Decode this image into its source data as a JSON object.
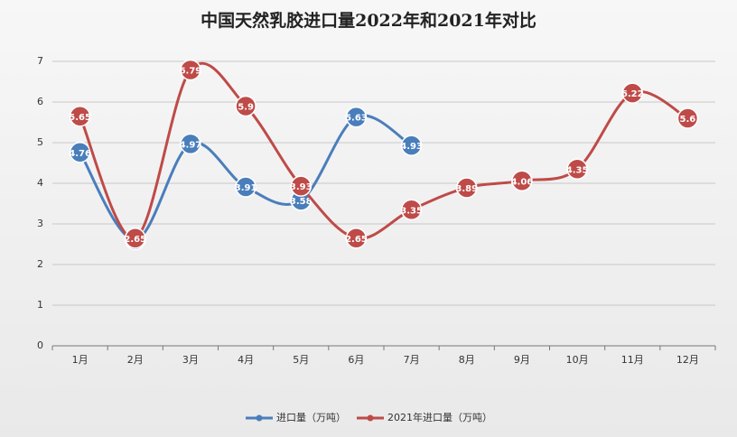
{
  "chart_data": {
    "type": "line",
    "title": "中国天然乳胶进口量2022年和2021年对比",
    "categories": [
      "1月",
      "2月",
      "3月",
      "4月",
      "5月",
      "6月",
      "7月",
      "8月",
      "9月",
      "10月",
      "11月",
      "12月"
    ],
    "series": [
      {
        "name": "进口量（万吨）",
        "color": "#4a7ebb",
        "values": [
          4.76,
          2.61,
          4.97,
          3.91,
          3.58,
          5.63,
          4.93,
          null,
          null,
          null,
          null,
          null
        ]
      },
      {
        "name": "2021年进口量（万吨）",
        "color": "#be4b48",
        "values": [
          5.65,
          2.65,
          6.79,
          5.9,
          3.93,
          2.65,
          3.35,
          3.89,
          4.06,
          4.35,
          6.22,
          5.6
        ]
      }
    ],
    "ylim": [
      0,
      7
    ],
    "yticks": [
      0,
      1,
      2,
      3,
      4,
      5,
      6,
      7
    ],
    "grid": true,
    "legend": "bottom",
    "smooth": true
  }
}
